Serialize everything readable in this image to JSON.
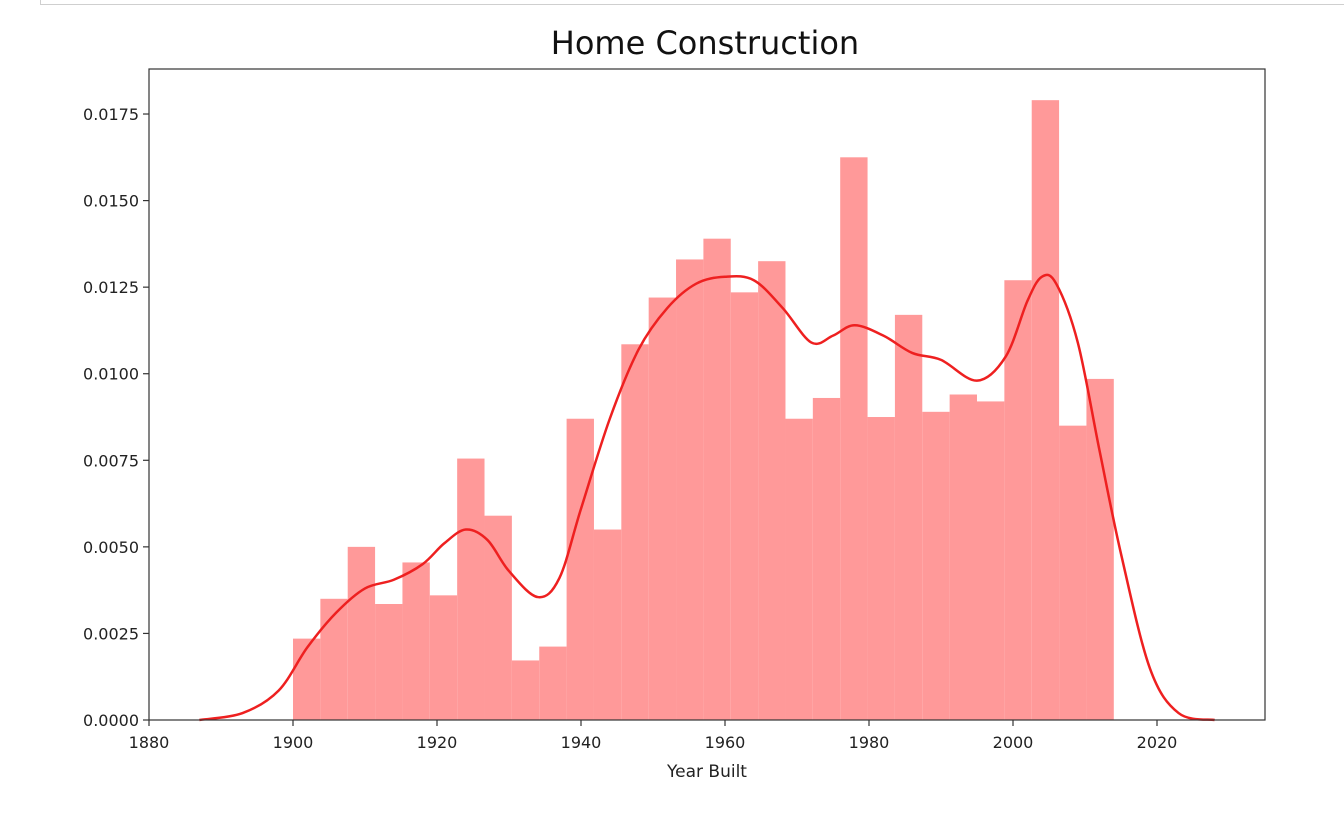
{
  "chart_data": {
    "type": "bar",
    "title": "Home Construction",
    "xlabel": "Year Built",
    "ylabel": "",
    "xlim": [
      1880,
      2035
    ],
    "ylim": [
      0,
      0.0188
    ],
    "xticks": [
      1880,
      1900,
      1920,
      1940,
      1960,
      1980,
      2000,
      2020
    ],
    "xtick_labels": [
      "1880",
      "1900",
      "1920",
      "1940",
      "1960",
      "1980",
      "2000",
      "2020"
    ],
    "yticks": [
      0,
      0.0025,
      0.005,
      0.0075,
      0.01,
      0.0125,
      0.015,
      0.0175
    ],
    "ytick_labels": [
      "0.0000",
      "0.0025",
      "0.0050",
      "0.0075",
      "0.0100",
      "0.0125",
      "0.0150",
      "0.0175"
    ],
    "grid": false,
    "bar_color": "#ff9999",
    "line_color": "#ee2020",
    "histogram": {
      "bin_start": 1900,
      "bin_width": 3.8,
      "densities": [
        0.00235,
        0.0035,
        0.005,
        0.00335,
        0.00455,
        0.0036,
        0.00755,
        0.0059,
        0.00172,
        0.00212,
        0.0087,
        0.0055,
        0.01085,
        0.0122,
        0.0133,
        0.0139,
        0.01235,
        0.01325,
        0.0087,
        0.0093,
        0.01625,
        0.00875,
        0.0117,
        0.0089,
        0.0094,
        0.0092,
        0.0127,
        0.0179,
        0.0085,
        0.00985
      ]
    },
    "kde": {
      "x": [
        1887,
        1893,
        1898,
        1902,
        1906,
        1910,
        1914,
        1918,
        1921,
        1924,
        1927,
        1930,
        1934,
        1937,
        1940,
        1944,
        1948,
        1952,
        1956,
        1960,
        1964,
        1968,
        1972,
        1975,
        1978,
        1982,
        1986,
        1990,
        1995,
        1999,
        2002,
        2004,
        2006,
        2009,
        2012,
        2015,
        2019,
        2023,
        2028
      ],
      "y": [
        0,
        0.0002,
        0.00085,
        0.0021,
        0.0031,
        0.0038,
        0.00405,
        0.0045,
        0.0051,
        0.0055,
        0.0052,
        0.0043,
        0.00355,
        0.0041,
        0.0061,
        0.0087,
        0.0107,
        0.0119,
        0.0126,
        0.0128,
        0.0127,
        0.0119,
        0.0109,
        0.0111,
        0.0114,
        0.0111,
        0.0106,
        0.0104,
        0.0098,
        0.0105,
        0.0121,
        0.0128,
        0.0126,
        0.0109,
        0.0078,
        0.0048,
        0.0015,
        0.0002,
        0
      ]
    }
  }
}
